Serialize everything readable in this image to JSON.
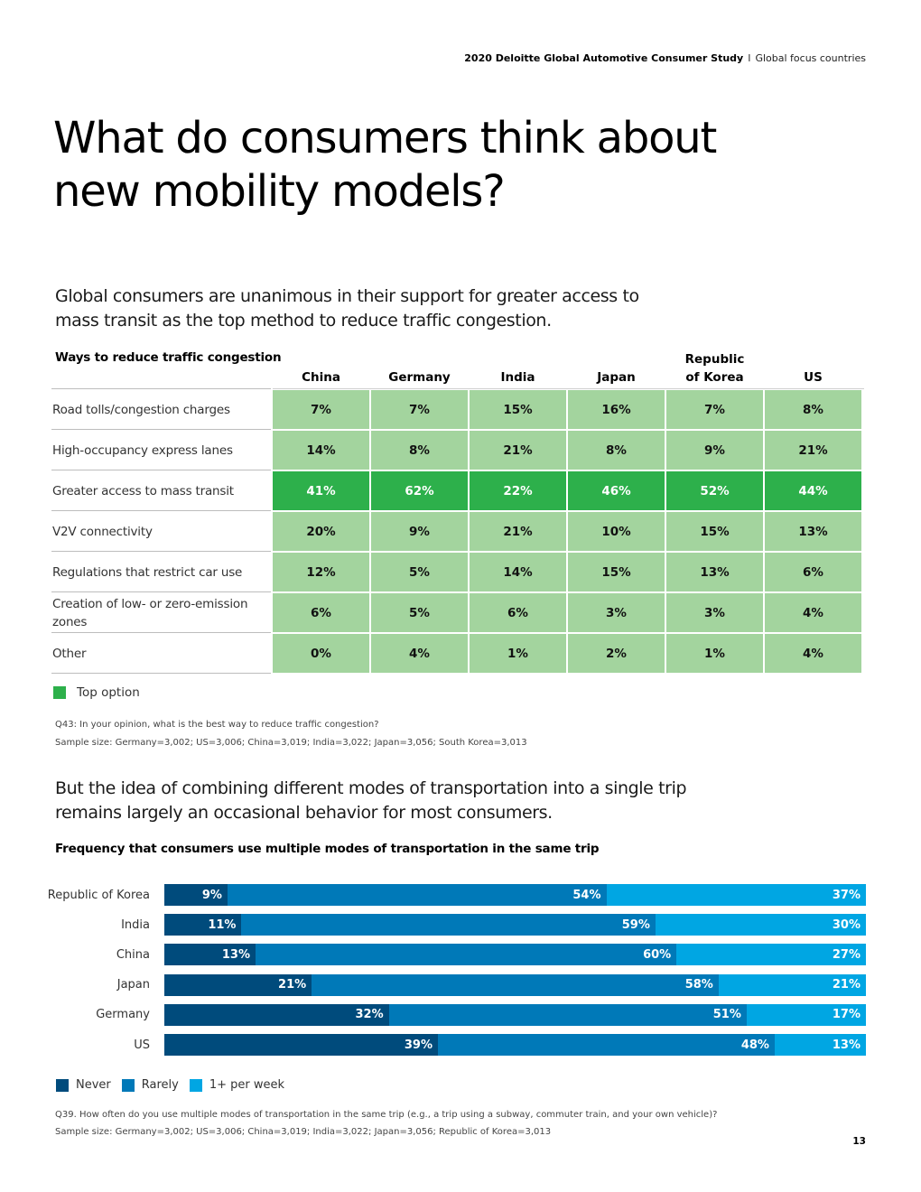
{
  "header": {
    "study": "2020 Deloitte Global Automotive Consumer Study",
    "separator": "I",
    "section": "Global focus countries"
  },
  "page_title": "What do consumers think about new mobility models?",
  "lead_1": "Global consumers are unanimous in their support for greater access to mass transit as the top method to reduce traffic congestion.",
  "lead_2": "But the idea of combining different modes of transportation into a single trip remains largely an occasional behavior for most consumers.",
  "colors": {
    "cell": "#a3d49e",
    "top_option": "#2db04b",
    "never": "#004b7c",
    "rarely": "#0079b8",
    "weekly": "#00a6e3"
  },
  "chart_data": [
    {
      "type": "heatmap",
      "title": "Ways to reduce traffic congestion",
      "columns": [
        "China",
        "Germany",
        "India",
        "Japan",
        "Republic of Korea",
        "US"
      ],
      "column_labels": [
        [
          "China"
        ],
        [
          "Germany"
        ],
        [
          "India"
        ],
        [
          "Japan"
        ],
        [
          "Republic",
          "of Korea"
        ],
        [
          "US"
        ]
      ],
      "rows": [
        {
          "label": "Road tolls/congestion charges",
          "values": [
            7,
            7,
            15,
            16,
            7,
            8
          ],
          "top": false
        },
        {
          "label": "High-occupancy express lanes",
          "values": [
            14,
            8,
            21,
            8,
            9,
            21
          ],
          "top": false
        },
        {
          "label": "Greater access to mass transit",
          "values": [
            41,
            62,
            22,
            46,
            52,
            44
          ],
          "top": true
        },
        {
          "label": "V2V connectivity",
          "values": [
            20,
            9,
            21,
            10,
            15,
            13
          ],
          "top": false
        },
        {
          "label": "Regulations that restrict car use",
          "values": [
            12,
            5,
            14,
            15,
            13,
            6
          ],
          "top": false
        },
        {
          "label": "Creation of low- or zero-emission zones",
          "values": [
            6,
            5,
            6,
            3,
            3,
            4
          ],
          "top": false
        },
        {
          "label": "Other",
          "values": [
            0,
            4,
            1,
            2,
            1,
            4
          ],
          "top": false
        }
      ],
      "unit": "%",
      "legend": [
        {
          "label": "Top option",
          "color": "#2db04b"
        }
      ],
      "footnote_question": "Q43: In your opinion, what is the best way to reduce traffic congestion?",
      "footnote_sample": "Sample size: Germany=3,002; US=3,006; China=3,019; India=3,022; Japan=3,056; South Korea=3,013"
    },
    {
      "type": "bar",
      "orientation": "horizontal",
      "stacked": true,
      "title": "Frequency that consumers use multiple modes of transportation in the same trip",
      "categories": [
        "Republic of Korea",
        "India",
        "China",
        "Japan",
        "Germany",
        "US"
      ],
      "series": [
        {
          "name": "Never",
          "color": "#004b7c",
          "values": [
            9,
            11,
            13,
            21,
            32,
            39
          ]
        },
        {
          "name": "Rarely",
          "color": "#0079b8",
          "values": [
            54,
            59,
            60,
            58,
            51,
            48
          ]
        },
        {
          "name": "1+ per week",
          "color": "#00a6e3",
          "values": [
            37,
            30,
            27,
            21,
            17,
            13
          ]
        }
      ],
      "unit": "%",
      "xlim": [
        0,
        100
      ],
      "legend_position": "bottom-left",
      "footnote_question": "Q39. How often do you use multiple modes of transportation in the same trip (e.g., a trip using a subway, commuter train, and your own vehicle)?",
      "footnote_sample": "Sample size: Germany=3,002; US=3,006; China=3,019; India=3,022; Japan=3,056; Republic of Korea=3,013"
    }
  ],
  "page_number": "13"
}
